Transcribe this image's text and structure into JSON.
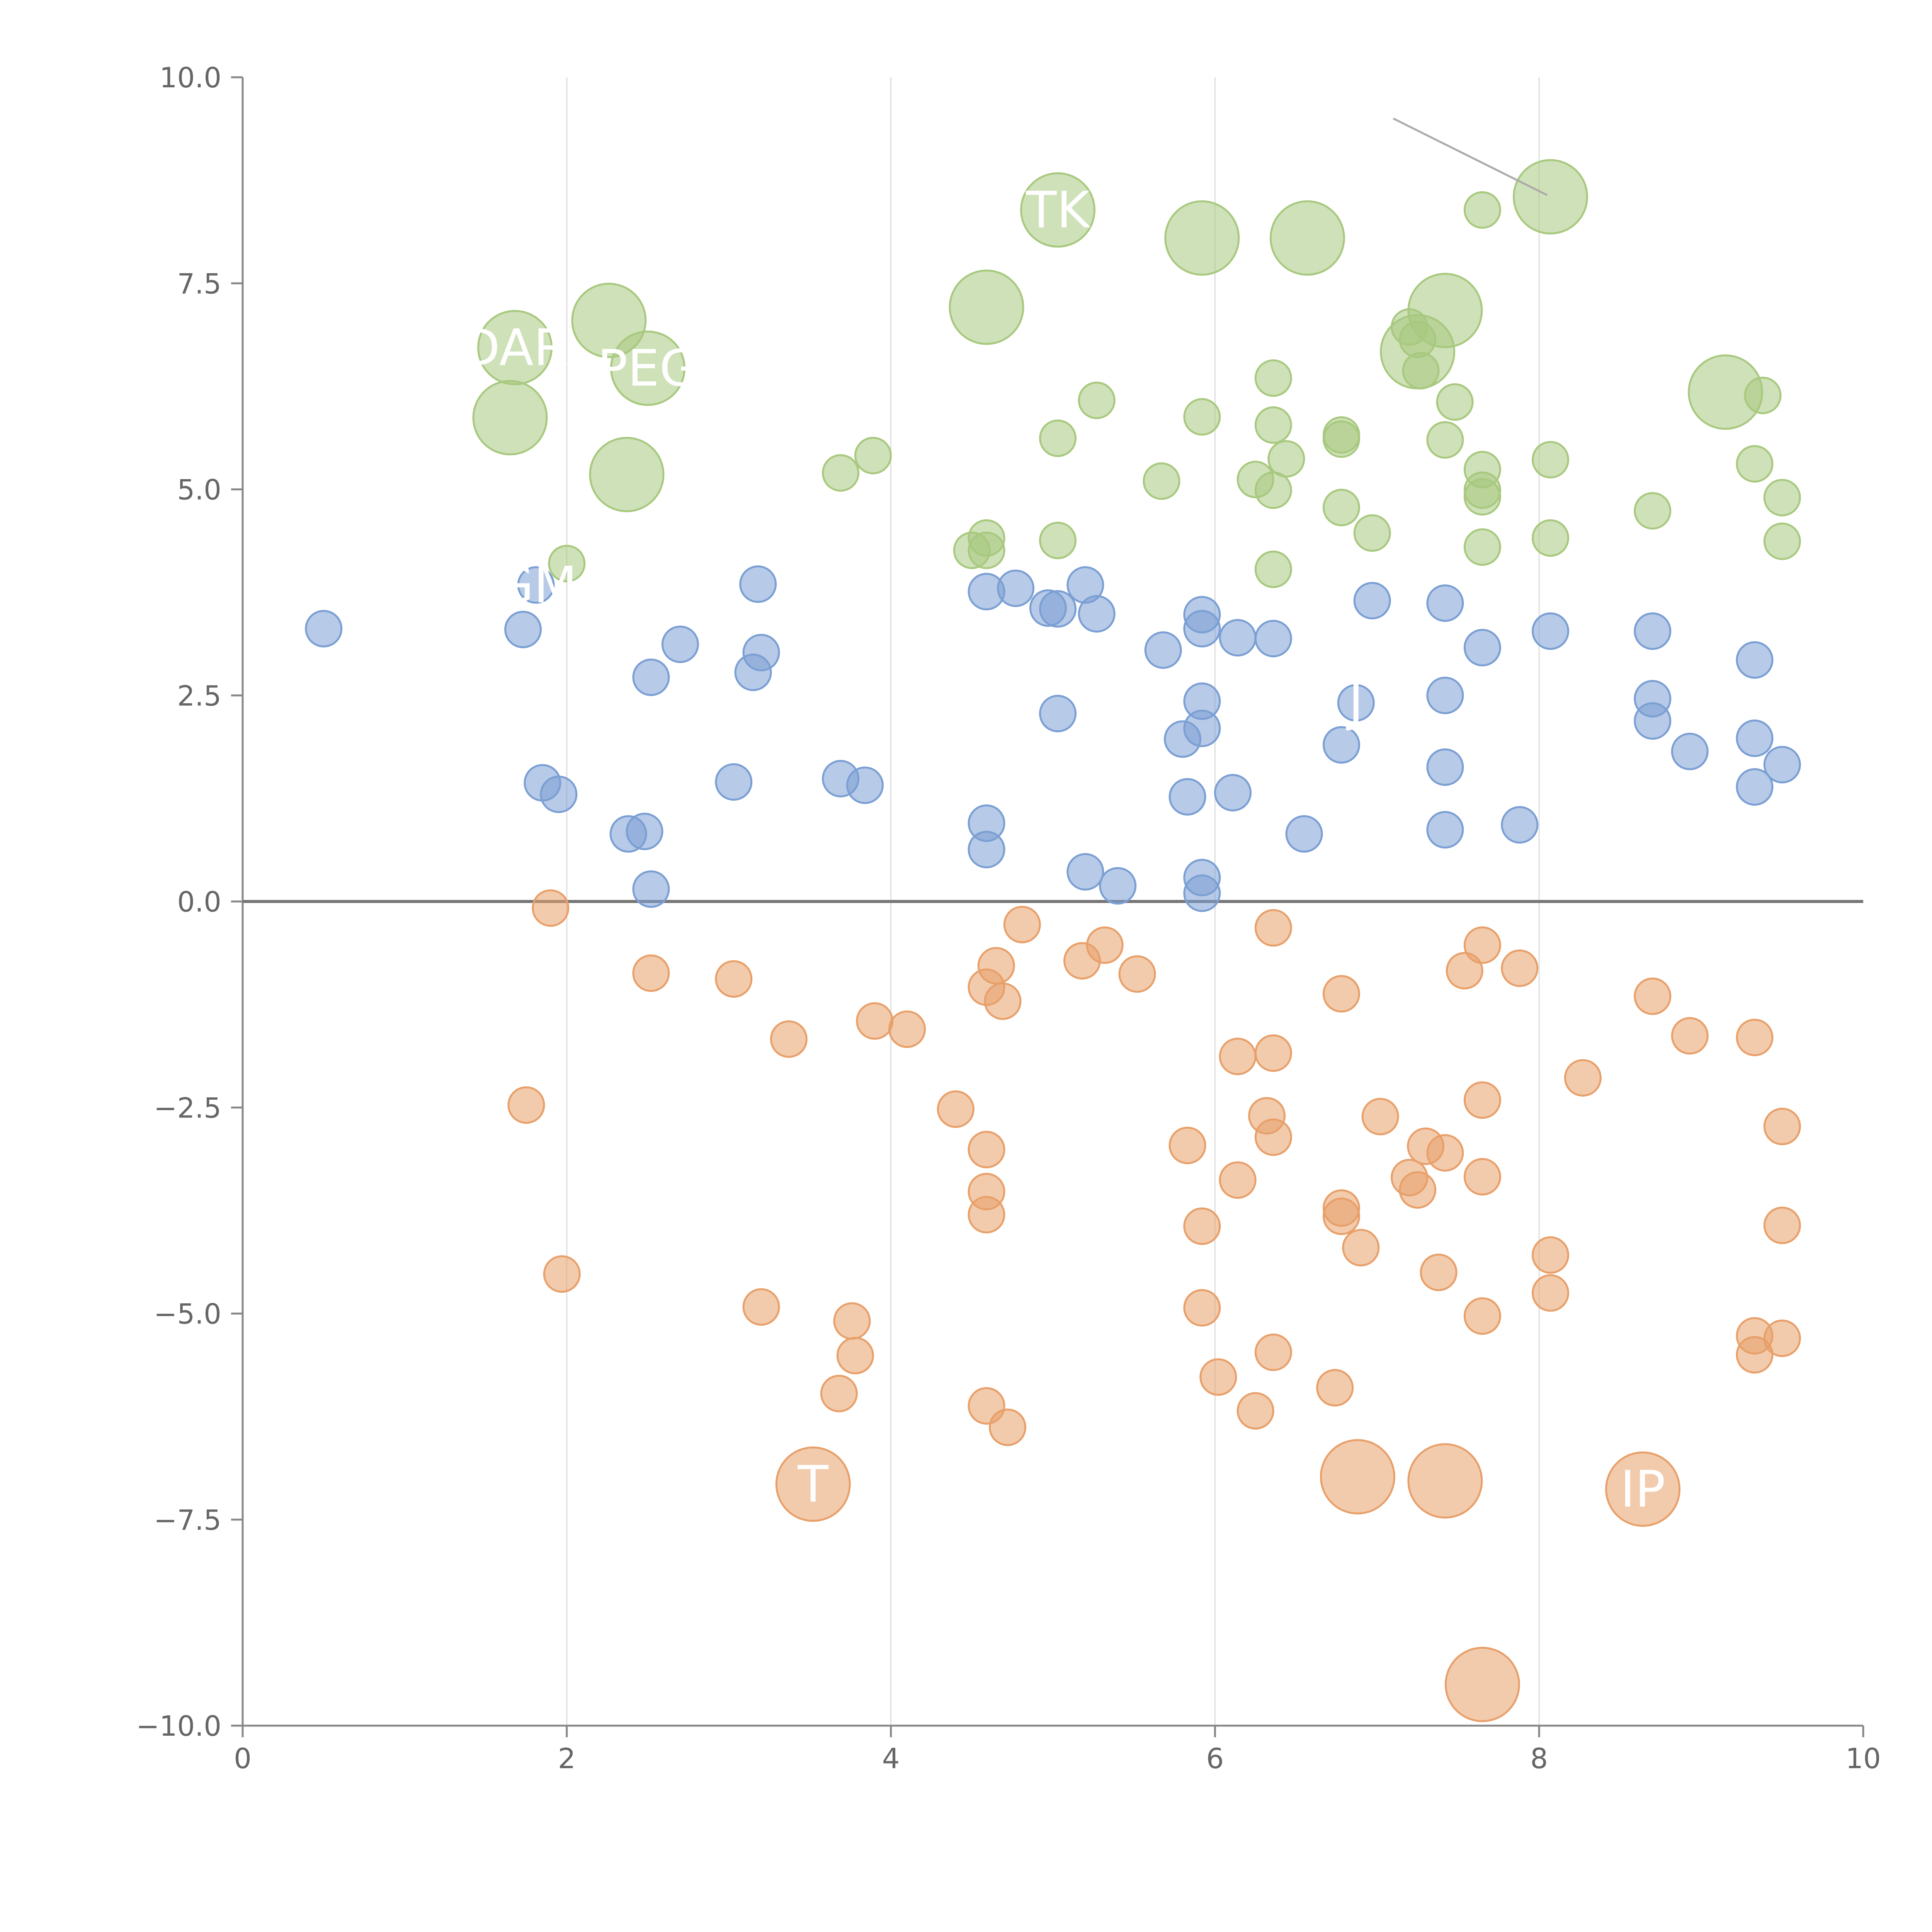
{
  "chart_data": {
    "type": "scatter",
    "title": "",
    "xlabel": "",
    "ylabel": "",
    "xlim": [
      0,
      10
    ],
    "ylim": [
      -10,
      10
    ],
    "grid": "vertical",
    "x_ticks": [
      0,
      2,
      4,
      6,
      8,
      10
    ],
    "x_tick_labels": [
      "0",
      "2",
      "4",
      "6",
      "8",
      "10"
    ],
    "y_ticks": [
      10,
      7.5,
      5,
      2.5,
      0,
      -2.5,
      -5,
      -7.5,
      -10
    ],
    "y_tick_labels": [
      "10.0",
      "7.5",
      "5.0",
      "2.5",
      "0.0",
      "−2.5",
      "−5.0",
      "−7.5",
      "−10.0"
    ],
    "baseline": 0,
    "colors": {
      "green": "#a8c97f",
      "blue": "#7b9fd4",
      "orange": "#e8a06a",
      "axis": "#888888",
      "grid": "#dddddd",
      "label": "#ffffff"
    },
    "series": [
      {
        "name": "green",
        "color": "#a8c97f",
        "points": [
          [
            7.65,
            8.39,
            1
          ],
          [
            8.07,
            8.55,
            2
          ],
          [
            5.03,
            8.39,
            2
          ],
          [
            5.92,
            8.05,
            2
          ],
          [
            6.57,
            8.05,
            2
          ],
          [
            4.59,
            7.21,
            2
          ],
          [
            2.26,
            7.05,
            2
          ],
          [
            1.68,
            6.72,
            2
          ],
          [
            2.5,
            6.47,
            2
          ],
          [
            1.65,
            5.87,
            2
          ],
          [
            2.37,
            5.18,
            2
          ],
          [
            7.42,
            7.17,
            2
          ],
          [
            7.25,
            6.67,
            2
          ],
          [
            9.15,
            6.18,
            2
          ],
          [
            7.2,
            6.97,
            1
          ],
          [
            7.25,
            6.82,
            1
          ],
          [
            7.27,
            6.44,
            1
          ],
          [
            7.48,
            6.06,
            1
          ],
          [
            6.36,
            6.35,
            1
          ],
          [
            5.27,
            6.08,
            1
          ],
          [
            5.92,
            5.88,
            1
          ],
          [
            6.36,
            5.78,
            1
          ],
          [
            5.03,
            5.62,
            1
          ],
          [
            6.78,
            5.66,
            1
          ],
          [
            6.78,
            5.61,
            1
          ],
          [
            7.42,
            5.6,
            1
          ],
          [
            6.44,
            5.37,
            1
          ],
          [
            8.07,
            5.36,
            1
          ],
          [
            7.65,
            5.24,
            1
          ],
          [
            9.33,
            5.31,
            1
          ],
          [
            9.38,
            6.14,
            1
          ],
          [
            6.25,
            5.12,
            1
          ],
          [
            5.67,
            5.1,
            1
          ],
          [
            6.36,
            4.99,
            1
          ],
          [
            7.65,
            4.99,
            1
          ],
          [
            7.65,
            4.91,
            1
          ],
          [
            9.5,
            4.9,
            1
          ],
          [
            6.78,
            4.78,
            1
          ],
          [
            8.7,
            4.74,
            1
          ],
          [
            6.97,
            4.47,
            1
          ],
          [
            8.07,
            4.41,
            1
          ],
          [
            9.5,
            4.37,
            1
          ],
          [
            7.65,
            4.3,
            1
          ],
          [
            5.03,
            4.38,
            1
          ],
          [
            4.59,
            4.41,
            1
          ],
          [
            4.59,
            4.26,
            1
          ],
          [
            4.5,
            4.26,
            1
          ],
          [
            6.36,
            4.03,
            1
          ],
          [
            3.69,
            5.2,
            1
          ],
          [
            3.89,
            5.41,
            1
          ],
          [
            2.0,
            4.1,
            1
          ]
        ]
      },
      {
        "name": "blue",
        "color": "#7b9fd4",
        "points": [
          [
            0.5,
            3.31,
            1
          ],
          [
            1.73,
            3.3,
            1
          ],
          [
            1.81,
            3.84,
            1
          ],
          [
            3.18,
            3.85,
            1
          ],
          [
            3.2,
            3.02,
            1
          ],
          [
            3.15,
            2.78,
            1
          ],
          [
            2.7,
            3.12,
            1
          ],
          [
            2.52,
            2.72,
            1
          ],
          [
            1.85,
            1.44,
            1
          ],
          [
            1.95,
            1.3,
            1
          ],
          [
            3.03,
            1.45,
            1
          ],
          [
            3.69,
            1.49,
            1
          ],
          [
            3.84,
            1.41,
            1
          ],
          [
            2.38,
            0.82,
            1
          ],
          [
            2.48,
            0.85,
            1
          ],
          [
            2.52,
            0.15,
            1
          ],
          [
            4.59,
            3.76,
            1
          ],
          [
            4.77,
            3.8,
            1
          ],
          [
            4.97,
            3.56,
            1
          ],
          [
            5.03,
            3.55,
            1
          ],
          [
            5.2,
            3.84,
            1
          ],
          [
            5.27,
            3.49,
            1
          ],
          [
            5.03,
            2.28,
            1
          ],
          [
            4.59,
            0.95,
            1
          ],
          [
            4.59,
            0.63,
            1
          ],
          [
            5.2,
            0.36,
            1
          ],
          [
            5.4,
            0.19,
            1
          ],
          [
            5.68,
            3.05,
            1
          ],
          [
            5.92,
            3.48,
            1
          ],
          [
            5.92,
            3.31,
            1
          ],
          [
            6.14,
            3.2,
            1
          ],
          [
            6.36,
            3.19,
            1
          ],
          [
            5.92,
            2.43,
            1
          ],
          [
            5.92,
            2.1,
            1
          ],
          [
            5.8,
            1.97,
            1
          ],
          [
            5.83,
            1.27,
            1
          ],
          [
            6.11,
            1.32,
            1
          ],
          [
            5.92,
            0.29,
            1
          ],
          [
            5.92,
            0.1,
            1
          ],
          [
            6.97,
            3.65,
            1
          ],
          [
            7.42,
            3.62,
            1
          ],
          [
            7.65,
            3.08,
            1
          ],
          [
            6.87,
            2.41,
            1
          ],
          [
            6.78,
            1.9,
            1
          ],
          [
            7.42,
            2.5,
            1
          ],
          [
            7.42,
            1.63,
            1
          ],
          [
            7.42,
            0.87,
            1
          ],
          [
            6.55,
            0.82,
            1
          ],
          [
            7.88,
            0.93,
            1
          ],
          [
            8.07,
            3.28,
            1
          ],
          [
            8.7,
            3.28,
            1
          ],
          [
            8.7,
            2.46,
            1
          ],
          [
            8.7,
            2.19,
            1
          ],
          [
            8.93,
            1.82,
            1
          ],
          [
            9.33,
            2.93,
            1
          ],
          [
            9.33,
            1.98,
            1
          ],
          [
            9.33,
            1.39,
            1
          ],
          [
            9.5,
            1.66,
            1
          ]
        ]
      },
      {
        "name": "orange",
        "color": "#e8a06a",
        "points": [
          [
            1.9,
            -0.08,
            1
          ],
          [
            2.52,
            -0.87,
            1
          ],
          [
            3.03,
            -0.94,
            1
          ],
          [
            3.37,
            -1.67,
            1
          ],
          [
            3.9,
            -1.45,
            1
          ],
          [
            4.1,
            -1.55,
            1
          ],
          [
            1.75,
            -2.47,
            1
          ],
          [
            1.97,
            -4.52,
            1
          ],
          [
            3.2,
            -4.92,
            1
          ],
          [
            3.76,
            -5.09,
            1
          ],
          [
            3.78,
            -5.51,
            1
          ],
          [
            3.68,
            -5.97,
            1
          ],
          [
            4.81,
            -0.28,
            1
          ],
          [
            4.65,
            -0.78,
            1
          ],
          [
            4.59,
            -1.04,
            1
          ],
          [
            4.69,
            -1.21,
            1
          ],
          [
            5.18,
            -0.72,
            1
          ],
          [
            5.32,
            -0.53,
            1
          ],
          [
            5.52,
            -0.88,
            1
          ],
          [
            4.4,
            -2.52,
            1
          ],
          [
            4.59,
            -3.01,
            1
          ],
          [
            4.59,
            -3.52,
            1
          ],
          [
            4.59,
            -3.8,
            1
          ],
          [
            4.59,
            -6.12,
            1
          ],
          [
            4.72,
            -6.38,
            1
          ],
          [
            6.36,
            -0.32,
            1
          ],
          [
            6.14,
            -1.88,
            1
          ],
          [
            6.36,
            -1.84,
            1
          ],
          [
            6.32,
            -2.6,
            1
          ],
          [
            6.36,
            -2.86,
            1
          ],
          [
            5.83,
            -2.96,
            1
          ],
          [
            6.14,
            -3.38,
            1
          ],
          [
            5.92,
            -3.94,
            1
          ],
          [
            5.92,
            -4.93,
            1
          ],
          [
            6.02,
            -5.77,
            1
          ],
          [
            6.36,
            -5.47,
            1
          ],
          [
            6.25,
            -6.18,
            1
          ],
          [
            6.74,
            -5.9,
            1
          ],
          [
            6.78,
            -1.12,
            1
          ],
          [
            7.02,
            -2.61,
            1
          ],
          [
            6.78,
            -3.72,
            1
          ],
          [
            6.78,
            -3.82,
            1
          ],
          [
            6.9,
            -4.2,
            1
          ],
          [
            7.2,
            -3.35,
            1
          ],
          [
            7.25,
            -3.5,
            1
          ],
          [
            7.3,
            -2.97,
            1
          ],
          [
            7.42,
            -3.05,
            1
          ],
          [
            7.38,
            -4.5,
            1
          ],
          [
            7.54,
            -0.84,
            1
          ],
          [
            7.65,
            -0.53,
            1
          ],
          [
            7.88,
            -0.81,
            1
          ],
          [
            7.65,
            -2.41,
            1
          ],
          [
            7.65,
            -3.34,
            1
          ],
          [
            7.65,
            -5.03,
            1
          ],
          [
            8.27,
            -2.14,
            1
          ],
          [
            8.07,
            -4.29,
            1
          ],
          [
            8.07,
            -4.75,
            1
          ],
          [
            8.7,
            -1.15,
            1
          ],
          [
            8.93,
            -1.63,
            1
          ],
          [
            9.33,
            -1.65,
            1
          ],
          [
            9.5,
            -2.73,
            1
          ],
          [
            9.5,
            -3.93,
            1
          ],
          [
            9.33,
            -5.27,
            1
          ],
          [
            9.33,
            -5.5,
            1
          ],
          [
            9.5,
            -5.3,
            1
          ],
          [
            3.52,
            -7.07,
            2
          ],
          [
            6.88,
            -6.98,
            2
          ],
          [
            7.42,
            -7.03,
            2
          ],
          [
            8.64,
            -7.13,
            2
          ],
          [
            7.65,
            -9.5,
            2
          ]
        ]
      }
    ],
    "annotations": [
      {
        "text": "TK",
        "x": 5.03,
        "y": 8.39
      },
      {
        "text": "DAR",
        "x": 1.68,
        "y": 6.72
      },
      {
        "text": "PEG",
        "x": 2.5,
        "y": 6.47
      },
      {
        "text": "GM",
        "x": 1.81,
        "y": 3.84
      },
      {
        "text": "J",
        "x": 6.87,
        "y": 2.41
      },
      {
        "text": "T",
        "x": 3.52,
        "y": -7.07
      },
      {
        "text": "IP",
        "x": 8.64,
        "y": -7.13
      }
    ]
  }
}
